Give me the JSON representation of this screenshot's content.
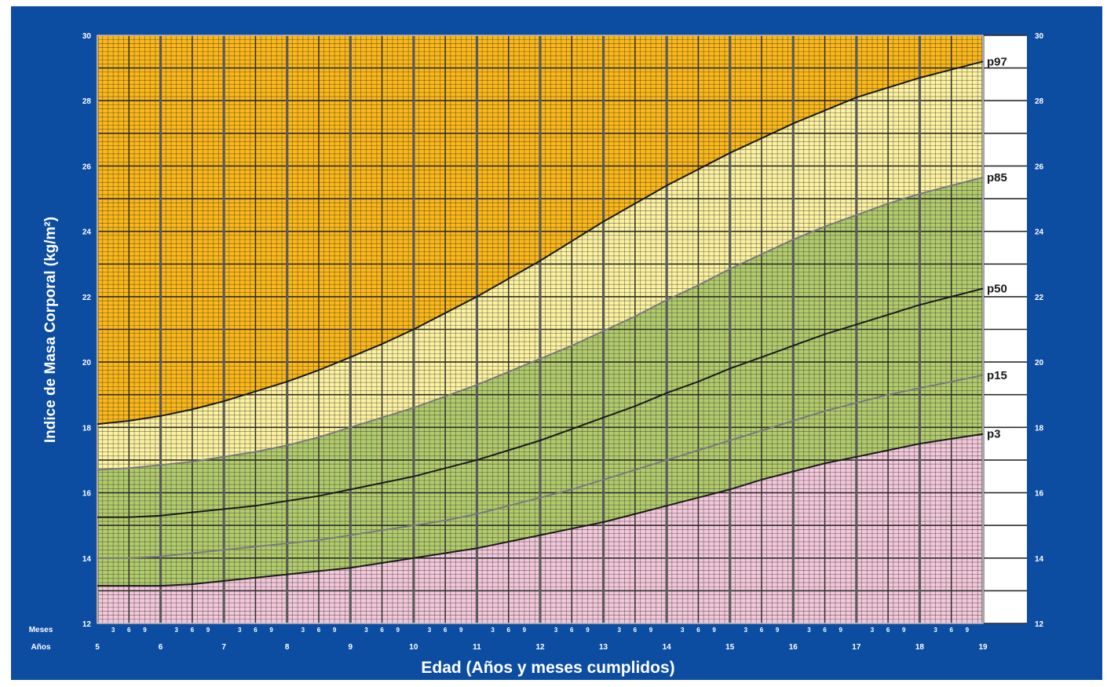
{
  "chart_data": {
    "type": "area",
    "title": "",
    "ylabel": "Indice de Masa Corporal (kg/m²)",
    "xlabel": "Edad (Años y meses cumplidos)",
    "row_label_months": "Meses",
    "row_label_years": "Años",
    "month_tick_labels": [
      "3",
      "6",
      "9"
    ],
    "ylim": [
      12,
      30
    ],
    "xlim": [
      5,
      19
    ],
    "y_ticks": [
      12,
      14,
      16,
      18,
      20,
      22,
      24,
      26,
      28,
      30
    ],
    "x_year_ticks": [
      "5",
      "6",
      "7",
      "8",
      "9",
      "10",
      "11",
      "12",
      "13",
      "14",
      "15",
      "16",
      "17",
      "18",
      "19"
    ],
    "x": [
      5,
      5.5,
      6,
      6.5,
      7,
      7.5,
      8,
      8.5,
      9,
      9.5,
      10,
      10.5,
      11,
      11.5,
      12,
      12.5,
      13,
      13.5,
      14,
      14.5,
      15,
      15.5,
      16,
      16.5,
      17,
      17.5,
      18,
      18.5,
      19
    ],
    "series": [
      {
        "name": "p97",
        "color": "#1a1a1a",
        "values": [
          18.1,
          18.2,
          18.35,
          18.55,
          18.8,
          19.1,
          19.4,
          19.75,
          20.15,
          20.55,
          21.0,
          21.5,
          22.0,
          22.55,
          23.1,
          23.7,
          24.3,
          24.85,
          25.4,
          25.9,
          26.4,
          26.85,
          27.3,
          27.7,
          28.1,
          28.4,
          28.7,
          28.95,
          29.2
        ]
      },
      {
        "name": "p85",
        "color": "#7a7a7a",
        "values": [
          16.7,
          16.75,
          16.85,
          16.95,
          17.1,
          17.25,
          17.45,
          17.7,
          18.0,
          18.3,
          18.6,
          18.95,
          19.3,
          19.7,
          20.1,
          20.5,
          20.95,
          21.4,
          21.9,
          22.35,
          22.85,
          23.3,
          23.75,
          24.15,
          24.5,
          24.85,
          25.15,
          25.4,
          25.65
        ]
      },
      {
        "name": "p50",
        "color": "#1a1a1a",
        "values": [
          15.25,
          15.25,
          15.3,
          15.4,
          15.5,
          15.6,
          15.75,
          15.9,
          16.1,
          16.3,
          16.5,
          16.75,
          17.0,
          17.3,
          17.6,
          17.95,
          18.3,
          18.65,
          19.05,
          19.4,
          19.8,
          20.15,
          20.5,
          20.85,
          21.15,
          21.45,
          21.75,
          22.0,
          22.25
        ]
      },
      {
        "name": "p15",
        "color": "#7a7a7a",
        "values": [
          14.0,
          14.0,
          14.05,
          14.15,
          14.25,
          14.35,
          14.45,
          14.55,
          14.7,
          14.85,
          15.0,
          15.15,
          15.35,
          15.6,
          15.85,
          16.1,
          16.4,
          16.7,
          17.0,
          17.3,
          17.6,
          17.9,
          18.2,
          18.5,
          18.75,
          19.0,
          19.2,
          19.4,
          19.6
        ]
      },
      {
        "name": "p3",
        "color": "#1a1a1a",
        "values": [
          13.15,
          13.15,
          13.15,
          13.2,
          13.3,
          13.4,
          13.5,
          13.6,
          13.7,
          13.85,
          14.0,
          14.15,
          14.3,
          14.5,
          14.7,
          14.9,
          15.1,
          15.35,
          15.6,
          15.85,
          16.1,
          16.4,
          16.65,
          16.9,
          17.1,
          17.3,
          17.5,
          17.65,
          17.8
        ]
      }
    ],
    "band_colors": {
      "above_p97": "#fbb818",
      "p85_to_p97": "#fcf2a0",
      "p3_to_p85": "#b2cc6c",
      "below_p3": "#f3c8da"
    },
    "frame_color": "#0c4da2",
    "grid_color": "#2c2c2c"
  }
}
